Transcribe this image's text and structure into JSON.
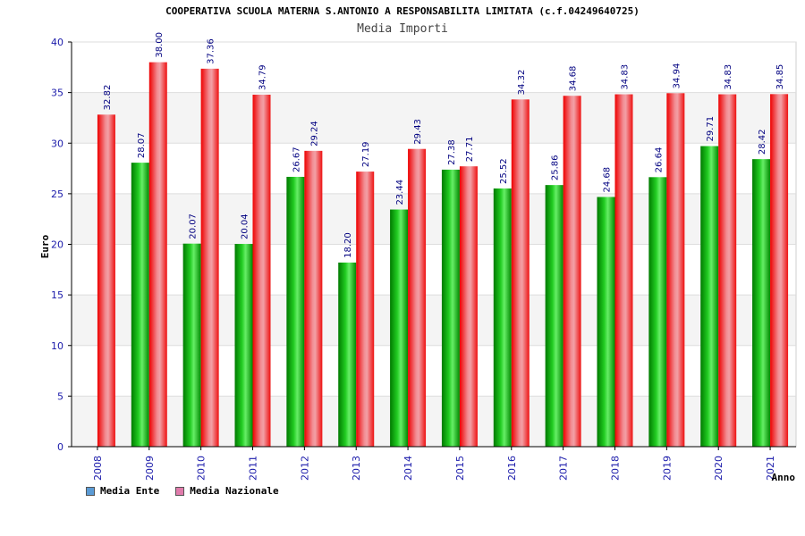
{
  "chart_data": {
    "type": "bar",
    "title": "COOPERATIVA SCUOLA MATERNA S.ANTONIO A RESPONSABILITA LIMITATA (c.f.04249640725)",
    "subtitle": "Media Importi",
    "xlabel": "Anno",
    "ylabel": "Euro",
    "ylim": [
      0,
      40
    ],
    "yticks": [
      0,
      5,
      10,
      15,
      20,
      25,
      30,
      35,
      40
    ],
    "grid": "horizontal",
    "legend_position": "bottom-left",
    "categories": [
      "2008",
      "2009",
      "2010",
      "2011",
      "2012",
      "2013",
      "2014",
      "2015",
      "2016",
      "2017",
      "2018",
      "2019",
      "2020",
      "2021"
    ],
    "series": [
      {
        "name": "Media Ente",
        "color": "#00aa00",
        "values": [
          null,
          28.07,
          20.07,
          20.04,
          26.67,
          18.2,
          23.44,
          27.38,
          25.52,
          25.86,
          24.68,
          26.64,
          29.71,
          28.42
        ],
        "labels": [
          "",
          "28.07",
          "20.07",
          "20.04",
          "26.67",
          "18.20",
          "23.44",
          "27.38",
          "25.52",
          "25.86",
          "24.68",
          "26.64",
          "29.71",
          "28.42"
        ]
      },
      {
        "name": "Media Nazionale",
        "color": "#e8202a",
        "values": [
          32.82,
          38.0,
          37.36,
          34.79,
          29.24,
          27.19,
          29.43,
          27.71,
          34.32,
          34.68,
          34.83,
          34.94,
          34.83,
          34.85
        ],
        "labels": [
          "32.82",
          "38.00",
          "37.36",
          "34.79",
          "29.24",
          "27.19",
          "29.43",
          "27.71",
          "34.32",
          "34.68",
          "34.83",
          "34.94",
          "34.83",
          "34.85"
        ]
      }
    ]
  },
  "legend": {
    "items": [
      {
        "label": "Media Ente",
        "swatch": "#5b9bd5"
      },
      {
        "label": "Media Nazionale",
        "swatch": "#e07bab"
      }
    ]
  }
}
